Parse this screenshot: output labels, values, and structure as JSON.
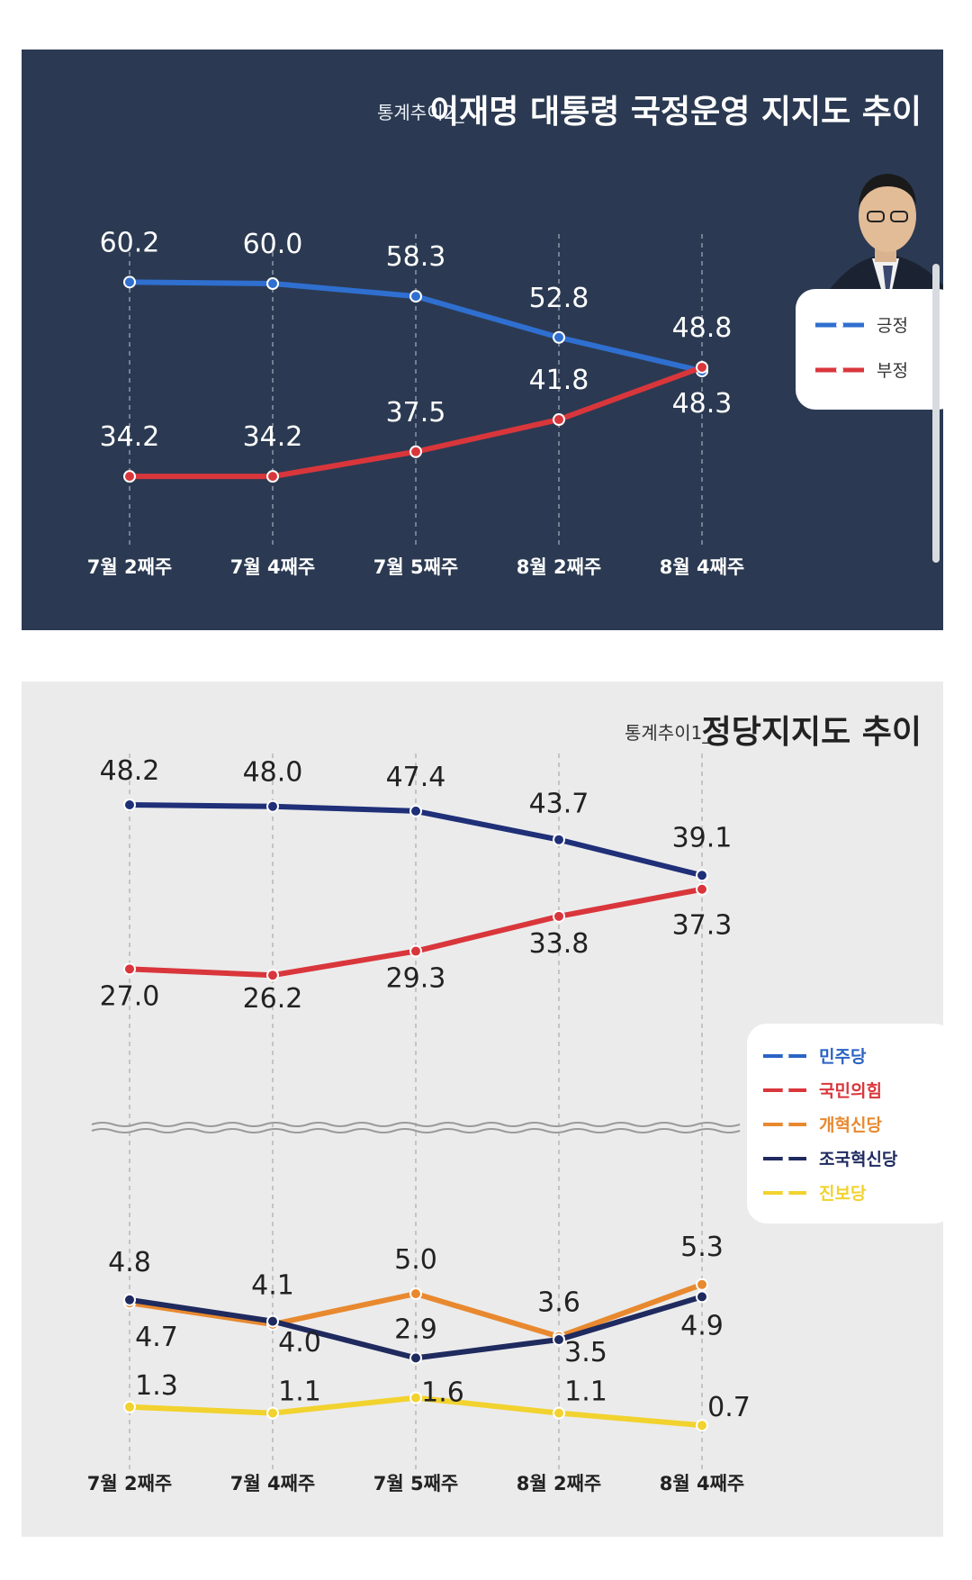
{
  "panel1": {
    "title_prefix": "통계추이2_",
    "title_main": "이재명 대통령 국정운영 지지도 추이",
    "legend": [
      {
        "label": "긍정",
        "color": "#2f6fd0"
      },
      {
        "label": "부정",
        "color": "#d9363c"
      }
    ]
  },
  "panel2": {
    "title_prefix": "통계추이1_",
    "title_main": "정당지지도 추이",
    "legend": [
      {
        "label": "민주당",
        "color": "#2b63c4"
      },
      {
        "label": "국민의힘",
        "color": "#d9363c"
      },
      {
        "label": "개혁신당",
        "color": "#e8892f"
      },
      {
        "label": "조국혁신당",
        "color": "#1f2a5e"
      },
      {
        "label": "진보당",
        "color": "#f2d22e"
      }
    ]
  },
  "chart_data": [
    {
      "type": "line",
      "title": "이재명 대통령 국정운영 지지도 추이",
      "categories": [
        "7월 2째주",
        "7월 4째주",
        "7월 5째주",
        "8월 2째주",
        "8월 4째주"
      ],
      "series": [
        {
          "name": "긍정",
          "color": "#2f6fd0",
          "values": [
            60.2,
            60.0,
            58.3,
            52.8,
            48.3
          ],
          "labels": [
            "60.2",
            "60.0",
            "58.3",
            "52.8",
            "48.3"
          ]
        },
        {
          "name": "부정",
          "color": "#d9363c",
          "values": [
            34.2,
            34.2,
            37.5,
            41.8,
            48.8
          ],
          "labels": [
            "34.2",
            "34.2",
            "37.5",
            "41.8",
            "48.8"
          ]
        }
      ],
      "grid": true,
      "legend_position": "right"
    },
    {
      "type": "line",
      "title": "정당지지도 추이",
      "categories": [
        "7월 2째주",
        "7월 4째주",
        "7월 5째주",
        "8월 2째주",
        "8월 4째주"
      ],
      "axis_break": true,
      "series": [
        {
          "name": "민주당",
          "color": "#1f2f78",
          "values": [
            48.2,
            48.0,
            47.4,
            43.7,
            39.1
          ],
          "labels": [
            "48.2",
            "48.0",
            "47.4",
            "43.7",
            "39.1"
          ]
        },
        {
          "name": "국민의힘",
          "color": "#d9363c",
          "values": [
            27.0,
            26.2,
            29.3,
            33.8,
            37.3
          ],
          "labels": [
            "27.0",
            "26.2",
            "29.3",
            "33.8",
            "37.3"
          ]
        },
        {
          "name": "개혁신당",
          "color": "#e8892f",
          "values": [
            4.7,
            4.0,
            5.0,
            3.6,
            5.3
          ],
          "labels": [
            "4.7",
            "4.0",
            "5.0",
            "3.6",
            "5.3"
          ]
        },
        {
          "name": "조국혁신당",
          "color": "#1f2a5e",
          "values": [
            4.8,
            4.1,
            2.9,
            3.5,
            4.9
          ],
          "labels": [
            "4.8",
            "4.1",
            "2.9",
            "3.5",
            "4.9"
          ]
        },
        {
          "name": "진보당",
          "color": "#f2d22e",
          "values": [
            1.3,
            1.1,
            1.6,
            1.1,
            0.7
          ],
          "labels": [
            "1.3",
            "1.1",
            "1.6",
            "1.1",
            "0.7"
          ]
        }
      ],
      "grid": true,
      "legend_position": "right"
    }
  ]
}
